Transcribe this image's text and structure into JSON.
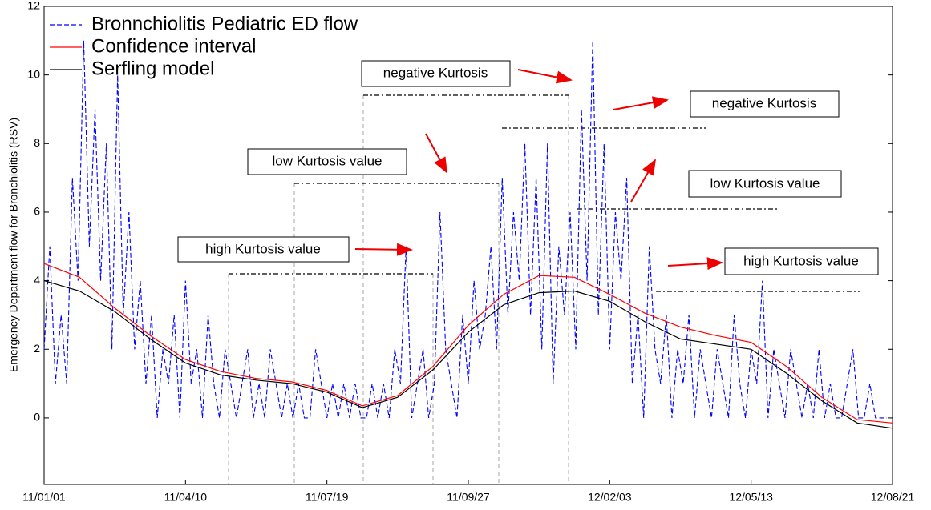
{
  "chart_data": {
    "type": "line",
    "ylabel": "Emergency Department flow for Bronchiolitis (RSV)",
    "xlim": [
      0,
      600
    ],
    "xticks": [
      {
        "value": 0,
        "label": "11/01/01"
      },
      {
        "value": 100,
        "label": "11/04/10"
      },
      {
        "value": 200,
        "label": "11/07/19"
      },
      {
        "value": 300,
        "label": "11/09/27"
      },
      {
        "value": 400,
        "label": "12/02/03"
      },
      {
        "value": 500,
        "label": "12/05/13"
      },
      {
        "value": 600,
        "label": "12/08/21"
      }
    ],
    "ylim": [
      -1.94,
      12
    ],
    "yticks": [
      0,
      2,
      4,
      6,
      8,
      10,
      12
    ],
    "legend": "upper left",
    "series": [
      {
        "name": "Bronnchiolitis Pediatric ED flow",
        "color": "#0000ff",
        "dash": true,
        "x": [
          0,
          4,
          8,
          12,
          16,
          20,
          24,
          28,
          32,
          36,
          40,
          44,
          48,
          52,
          56,
          60,
          64,
          68,
          72,
          76,
          80,
          84,
          88,
          92,
          96,
          100,
          104,
          108,
          112,
          116,
          120,
          124,
          128,
          132,
          136,
          140,
          144,
          148,
          152,
          156,
          160,
          164,
          168,
          172,
          176,
          180,
          184,
          188,
          192,
          196,
          200,
          204,
          208,
          212,
          216,
          220,
          224,
          228,
          232,
          236,
          240,
          244,
          248,
          252,
          256,
          260,
          264,
          268,
          272,
          276,
          280,
          284,
          288,
          292,
          296,
          300,
          304,
          308,
          312,
          316,
          320,
          324,
          328,
          332,
          336,
          340,
          344,
          348,
          352,
          356,
          360,
          364,
          368,
          372,
          376,
          380,
          384,
          388,
          392,
          396,
          400,
          404,
          408,
          412,
          416,
          420,
          424,
          428,
          432,
          436,
          440,
          444,
          448,
          452,
          456,
          460,
          464,
          468,
          472,
          476,
          480,
          484,
          488,
          492,
          496,
          500,
          504,
          508,
          512,
          516,
          520,
          524,
          528,
          532,
          536,
          540,
          544,
          548,
          552,
          556,
          560,
          564,
          568,
          572,
          576,
          580,
          584,
          588,
          592,
          596
        ],
        "values": [
          2,
          5,
          1,
          3,
          1,
          7,
          4,
          11,
          5,
          9,
          4,
          8,
          2,
          10,
          3,
          6,
          2,
          4,
          1,
          3,
          0,
          2,
          1,
          3,
          0,
          4,
          1,
          2,
          0,
          3,
          1,
          0,
          2,
          1,
          0,
          1,
          2,
          0,
          1,
          0,
          2,
          1,
          0,
          1,
          0,
          1,
          0,
          0,
          2,
          1,
          0,
          1,
          0,
          1,
          0,
          1,
          0,
          0,
          1,
          0,
          1,
          0,
          2,
          1,
          5,
          0,
          1,
          2,
          0,
          1,
          6,
          2,
          1,
          0,
          3,
          1,
          4,
          2,
          3,
          5,
          2,
          7,
          3,
          6,
          4,
          8,
          3,
          7,
          2,
          8,
          1,
          5,
          3,
          6,
          2,
          9,
          4,
          11,
          3,
          8,
          2,
          6,
          4,
          7,
          1,
          3,
          0,
          5,
          2,
          1,
          3,
          0,
          2,
          1,
          3,
          0,
          2,
          1,
          0,
          2,
          1,
          0,
          3,
          1,
          0,
          2,
          1,
          4,
          0,
          2,
          1,
          0,
          2,
          1,
          0,
          1,
          0,
          2,
          0,
          1,
          0,
          0,
          1,
          2,
          0,
          0,
          1,
          0,
          0,
          0
        ]
      },
      {
        "name": "Confidence interval",
        "color": "#ff0000",
        "x": [
          0,
          25,
          50,
          75,
          100,
          125,
          150,
          175,
          200,
          225,
          250,
          275,
          300,
          325,
          350,
          375,
          400,
          425,
          450,
          475,
          500,
          525,
          550,
          575,
          600
        ],
        "values": [
          4.5,
          4.1,
          3.2,
          2.4,
          1.7,
          1.35,
          1.15,
          1.05,
          0.8,
          0.35,
          0.65,
          1.5,
          2.7,
          3.6,
          4.15,
          4.1,
          3.6,
          3.05,
          2.65,
          2.4,
          2.2,
          1.5,
          0.6,
          -0.05,
          -0.15
        ]
      },
      {
        "name": "Serfling model",
        "color": "#000000",
        "x": [
          0,
          25,
          50,
          75,
          100,
          125,
          150,
          175,
          200,
          225,
          250,
          275,
          300,
          325,
          350,
          375,
          400,
          425,
          450,
          475,
          500,
          525,
          550,
          575,
          600
        ],
        "values": [
          4.0,
          3.7,
          3.1,
          2.3,
          1.6,
          1.25,
          1.1,
          1.0,
          0.75,
          0.3,
          0.6,
          1.4,
          2.5,
          3.3,
          3.65,
          3.7,
          3.4,
          2.8,
          2.3,
          2.15,
          2.0,
          1.3,
          0.5,
          -0.15,
          -0.3
        ]
      }
    ],
    "annotations": [
      "high Kurtosis value",
      "low Kurtosis value",
      "negative Kurtosis",
      "negative Kurtosis",
      "low Kurtosis value",
      "high Kurtosis value"
    ]
  }
}
